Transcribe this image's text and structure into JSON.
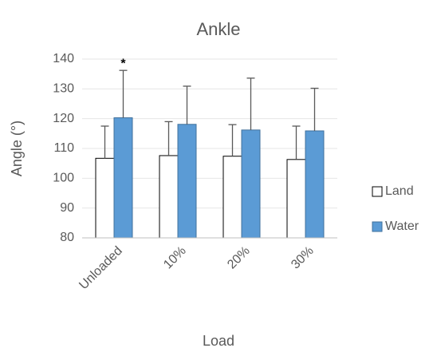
{
  "chart_data": {
    "type": "bar",
    "title": "Ankle",
    "y_label": "Angle (°)",
    "x_label": "Load",
    "categories": [
      "Unloaded",
      "10%",
      "20%",
      "30%"
    ],
    "series": [
      {
        "name": "Land",
        "color": "#ffffff",
        "values": [
          106.7,
          107.6,
          107.4,
          106.3
        ],
        "errors": [
          10.8,
          11.4,
          10.6,
          11.2
        ]
      },
      {
        "name": "Water",
        "color": "#5b9bd5",
        "values": [
          120.3,
          118.1,
          116.2,
          115.9
        ],
        "errors": [
          15.9,
          12.8,
          17.4,
          14.3
        ]
      }
    ],
    "ylim": [
      80,
      140
    ],
    "yticks": [
      80,
      90,
      100,
      110,
      120,
      130,
      140
    ],
    "grid": true,
    "legend": "right",
    "annotations": [
      {
        "text": "*",
        "category": "Unloaded",
        "series": "Water"
      }
    ]
  }
}
